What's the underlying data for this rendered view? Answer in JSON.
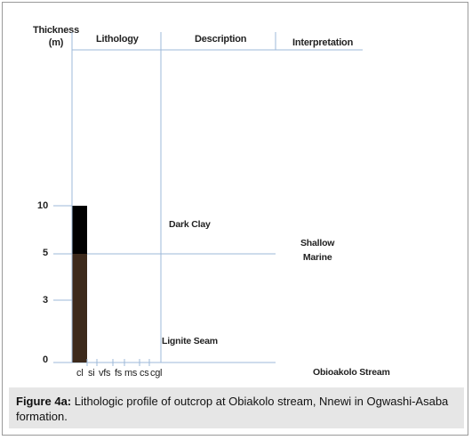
{
  "header": {
    "thickness_line1": "Thickness",
    "thickness_line2": "(m)",
    "lithology": "Lithology",
    "description": "Description",
    "interpretation": "Interpretation"
  },
  "scale": {
    "ticks": [
      "10",
      "5",
      "3",
      "0"
    ]
  },
  "lithology_units": [
    {
      "from_tick": "10",
      "to_tick": "5",
      "color": "#000000",
      "name": "Dark Clay"
    },
    {
      "from_tick": "5",
      "to_tick": "0",
      "color": "#3d2a1c",
      "name": "Lignite Seam"
    }
  ],
  "descriptions": {
    "upper": "Dark Clay",
    "lower": "Lignite Seam"
  },
  "interpretation": {
    "line1": "Shallow",
    "line2": "Marine"
  },
  "location": "Obioakolo Stream",
  "grain_sizes": [
    "cl",
    "si",
    "vfs",
    "fs",
    "ms",
    "cs",
    "cgl"
  ],
  "caption": {
    "label": "Figure 4a:",
    "text": " Lithologic profile of outcrop at Obiakolo stream, Nnewi in Ogwashi-Asaba formation."
  },
  "colors": {
    "grid_line": "#9eb8d8",
    "caption_bg": "#e6e6e6"
  }
}
